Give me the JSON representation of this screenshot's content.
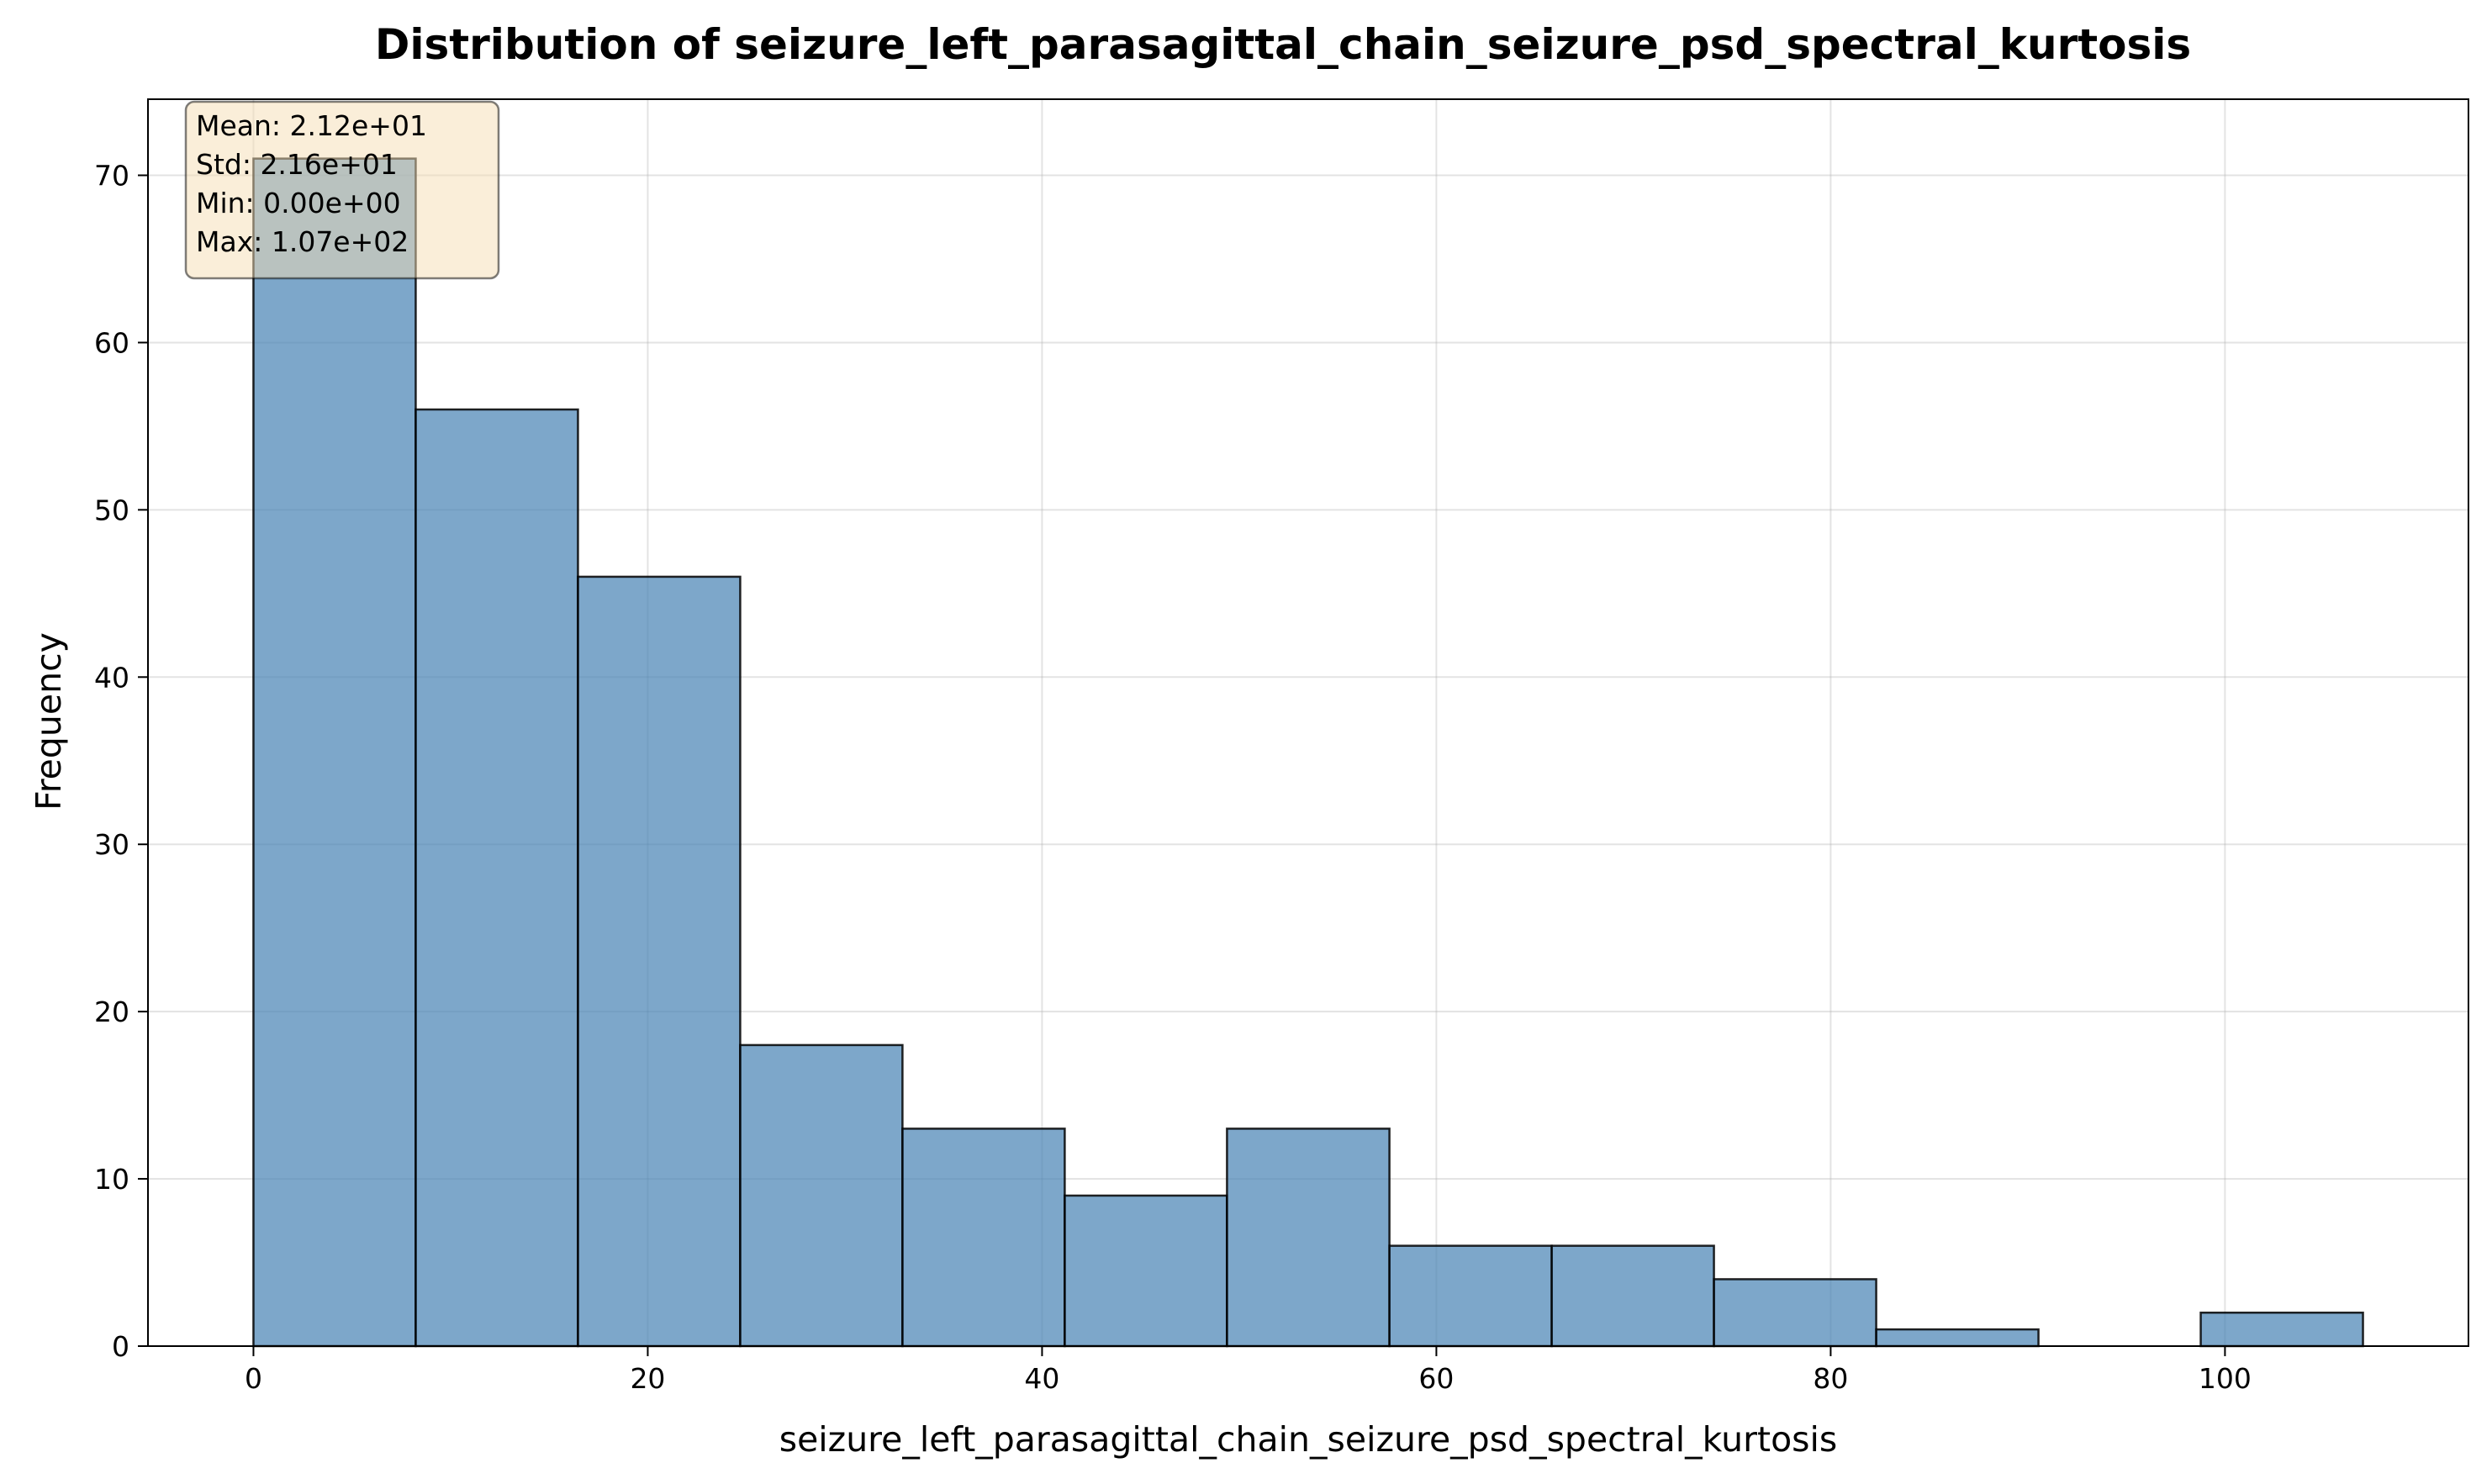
{
  "chart_data": {
    "type": "bar",
    "title": "Distribution of seizure_left_parasagittal_chain_seizure_psd_spectral_kurtosis",
    "xlabel": "seizure_left_parasagittal_chain_seizure_psd_spectral_kurtosis",
    "ylabel": "Frequency",
    "xlim": [
      -5.35,
      112.35
    ],
    "ylim": [
      0,
      74.55
    ],
    "x_ticks": [
      0,
      20,
      40,
      60,
      80,
      100
    ],
    "y_ticks": [
      0,
      10,
      20,
      30,
      40,
      50,
      60,
      70
    ],
    "grid": true,
    "bins": [
      {
        "start": 0.0,
        "end": 8.23,
        "count": 71
      },
      {
        "start": 8.23,
        "end": 16.46,
        "count": 56
      },
      {
        "start": 16.46,
        "end": 24.69,
        "count": 46
      },
      {
        "start": 24.69,
        "end": 32.92,
        "count": 18
      },
      {
        "start": 32.92,
        "end": 41.15,
        "count": 13
      },
      {
        "start": 41.15,
        "end": 49.38,
        "count": 9
      },
      {
        "start": 49.38,
        "end": 57.62,
        "count": 13
      },
      {
        "start": 57.62,
        "end": 65.85,
        "count": 6
      },
      {
        "start": 65.85,
        "end": 74.08,
        "count": 6
      },
      {
        "start": 74.08,
        "end": 82.31,
        "count": 4
      },
      {
        "start": 82.31,
        "end": 90.54,
        "count": 1
      },
      {
        "start": 90.54,
        "end": 98.77,
        "count": 0
      },
      {
        "start": 98.77,
        "end": 107.0,
        "count": 2
      }
    ],
    "stats_box": {
      "placement": "top-left",
      "lines": [
        "Mean: 2.12e+01",
        "Std: 2.16e+01",
        "Min: 0.00e+00",
        "Max: 1.07e+02"
      ]
    },
    "colors": {
      "bar_fill": "#4682b4",
      "bar_edge": "#000000",
      "stats_fill": "#f5deb3"
    }
  }
}
